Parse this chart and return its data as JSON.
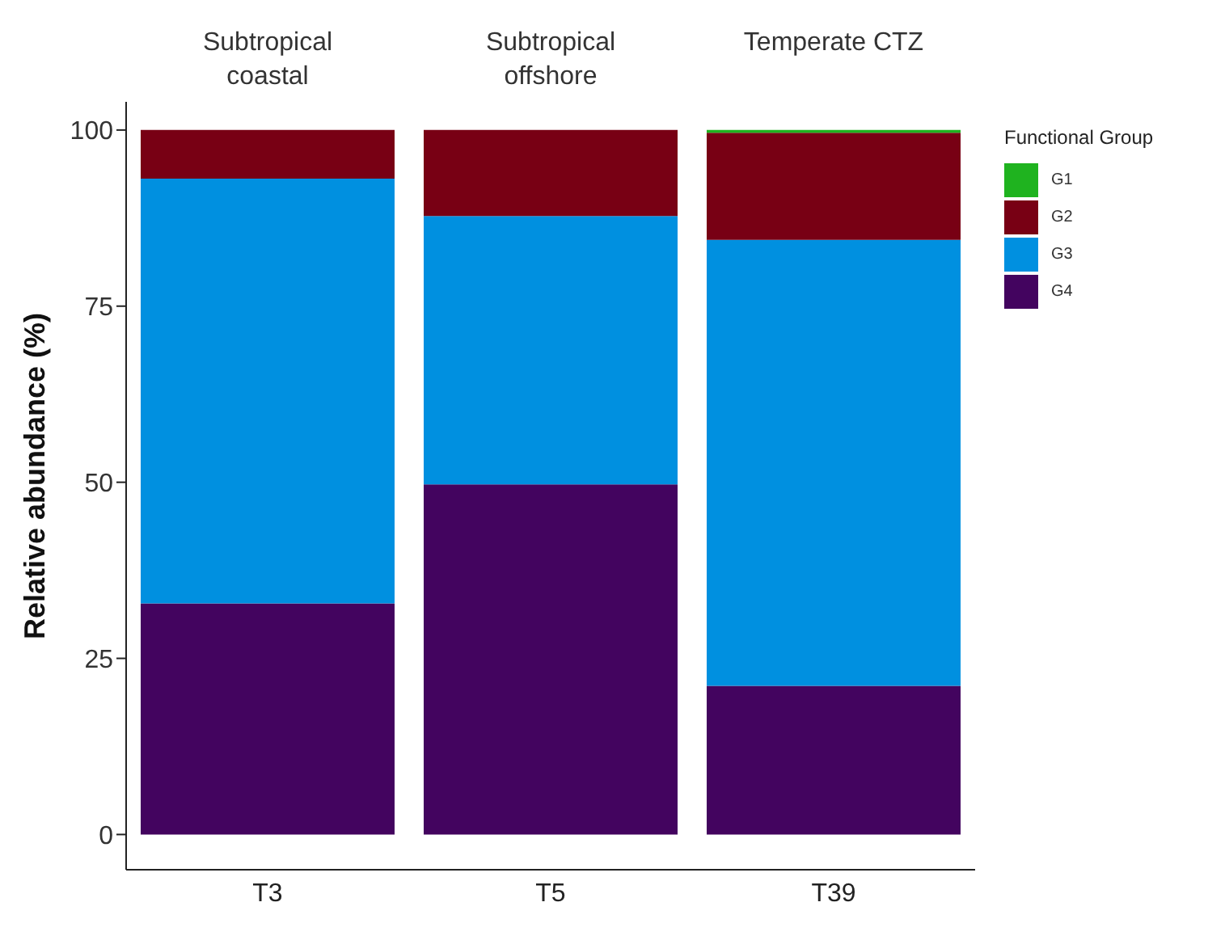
{
  "chart_data": {
    "type": "bar",
    "stacked": true,
    "ylabel": "Relative abundance (%)",
    "legend_title": "Functional Group",
    "legend": "top right",
    "categories": [
      "T3",
      "T5",
      "T39"
    ],
    "series": [
      {
        "name": "G4",
        "color": "#43045f",
        "values": [
          32.8,
          49.7,
          21.1
        ]
      },
      {
        "name": "G3",
        "color": "#0090e0",
        "values": [
          60.3,
          38.1,
          63.3
        ]
      },
      {
        "name": "G2",
        "color": "#780014",
        "values": [
          6.9,
          12.2,
          15.2
        ]
      },
      {
        "name": "G1",
        "color": "#1fb31f",
        "values": [
          0,
          0,
          0.4
        ]
      }
    ],
    "ylim": [
      -5,
      104
    ],
    "yticks": [
      0,
      25,
      50,
      75,
      100
    ],
    "grid": false,
    "annotations": [
      "Subtropical coastal",
      "Subtropical offshore",
      "Temperate CTZ"
    ]
  }
}
